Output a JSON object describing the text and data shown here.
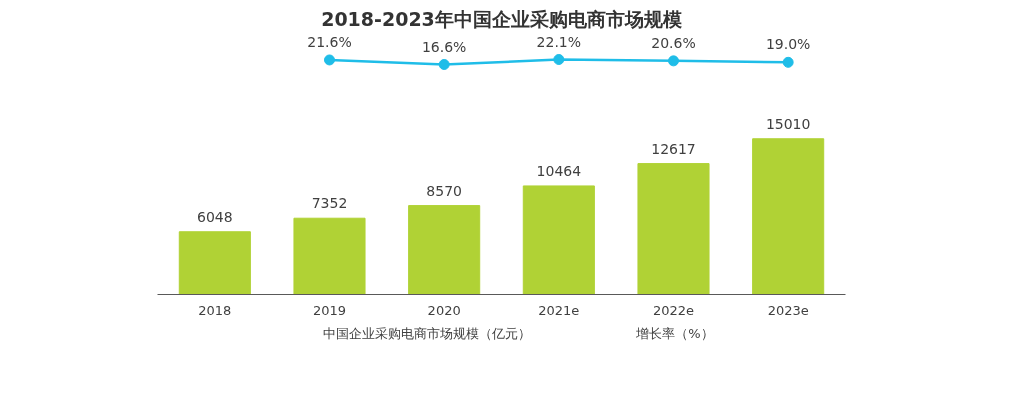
{
  "chart_data": [
    {
      "type": "line",
      "title": "2018-2023年中国企业采购电商市场规模",
      "categories": [
        null,
        null,
        null,
        null,
        null,
        null
      ],
      "series": [
        {
          "name": "增长率（%）",
          "color": "#1fbde8",
          "values": [
            null,
            21.6,
            16.6,
            22.1,
            20.6,
            19.0
          ],
          "value_labels": [
            null,
            "21.6%",
            "16.6%",
            "22.1%",
            "20.6%",
            "19.0%"
          ]
        }
      ],
      "marker": "circle",
      "tick_labels": false,
      "legend": "bottom"
    },
    {
      "type": "bar",
      "categories": [
        "2018",
        "2019",
        "2020",
        "2021e",
        "2022e",
        "2023e"
      ],
      "series": [
        {
          "name": "中国企业采购电商市场规模（亿元）",
          "color": "#b0d235",
          "values": [
            6048,
            7352,
            8570,
            10464,
            12617,
            15010
          ]
        }
      ],
      "tick_labels": "x",
      "data_labels": true,
      "legend": "bottom"
    }
  ]
}
